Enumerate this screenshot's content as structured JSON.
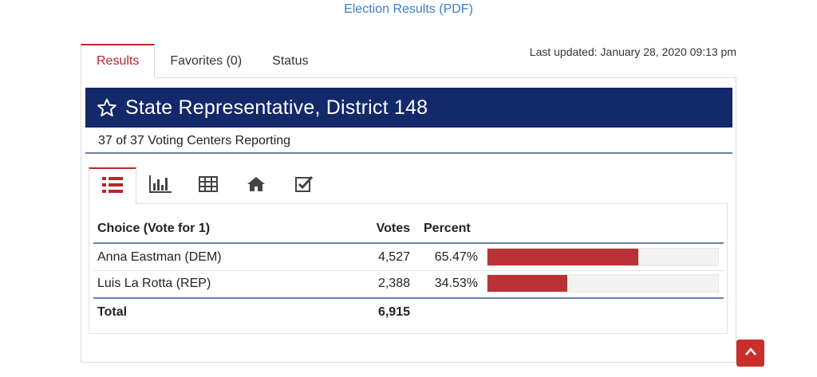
{
  "header_link": "Election Results (PDF)",
  "tabs": [
    "Results",
    "Favorites (0)",
    "Status"
  ],
  "last_updated": "Last updated: January 28, 2020 09:13 pm",
  "contest": {
    "title": "State Representative, District 148",
    "reporting": "37 of 37 Voting Centers Reporting"
  },
  "view_icons": [
    "list-icon",
    "bar-chart-icon",
    "table-icon",
    "home-icon",
    "checkbox-icon"
  ],
  "table": {
    "headers": {
      "choice": "Choice (Vote for 1)",
      "votes": "Votes",
      "percent": "Percent"
    },
    "rows": [
      {
        "choice": "Anna Eastman (DEM)",
        "votes": "4,527",
        "percent": "65.47%",
        "share": 0.6547
      },
      {
        "choice": "Luis La Rotta (REP)",
        "votes": "2,388",
        "percent": "34.53%",
        "share": 0.3453
      }
    ],
    "total_label": "Total",
    "total_votes": "6,915"
  },
  "colors": {
    "header_bg": "#13296a",
    "accent": "#b5282c",
    "bar": "#bb3236",
    "link": "#3a7ccf"
  }
}
